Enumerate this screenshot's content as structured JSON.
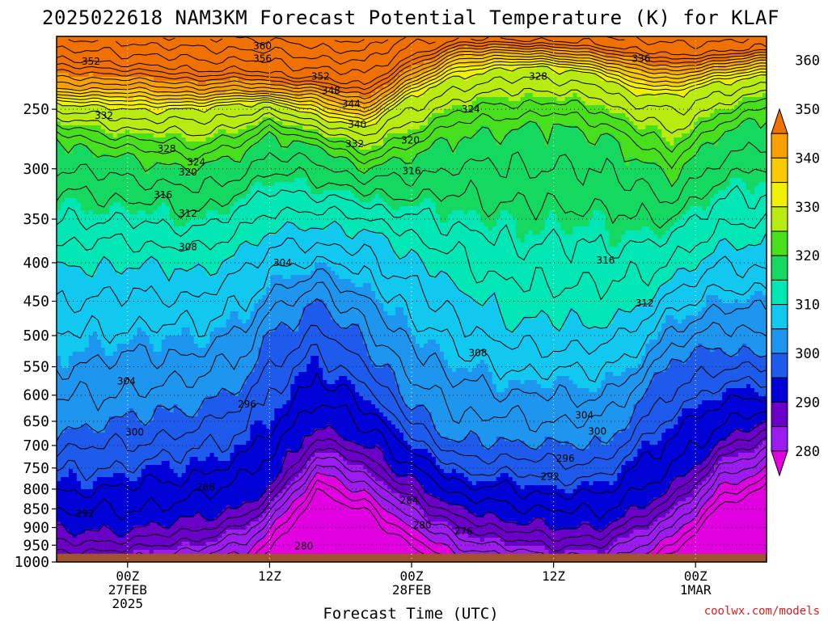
{
  "chart_data": {
    "type": "heatmap",
    "title": "2025022618 NAM3KM Forecast Potential Temperature (K) for KLAF",
    "xlabel": "Forecast Time (UTC)",
    "ylabel": "",
    "credit": "coolwx.com/models",
    "y_axis": {
      "units": "hPa",
      "scale": "log",
      "range": [
        200,
        1000
      ],
      "ticks": [
        250,
        300,
        350,
        400,
        450,
        500,
        550,
        600,
        650,
        700,
        750,
        800,
        850,
        900,
        950,
        1000
      ],
      "tick_labels": [
        "250",
        "300",
        "350",
        "400",
        "450",
        "500",
        "550",
        "600",
        "650",
        "700",
        "750",
        "800",
        "850",
        "900",
        "950",
        "1000"
      ]
    },
    "x_axis": {
      "units": "forecast hours from 2025-02-26 18Z",
      "range": [
        0,
        60
      ],
      "ticks": [
        {
          "hour": 6,
          "lines": [
            "00Z",
            "27FEB",
            "2025"
          ]
        },
        {
          "hour": 18,
          "lines": [
            "12Z"
          ]
        },
        {
          "hour": 30,
          "lines": [
            "00Z",
            "28FEB"
          ]
        },
        {
          "hour": 42,
          "lines": [
            "12Z"
          ]
        },
        {
          "hour": 54,
          "lines": [
            "00Z",
            "1MAR"
          ]
        }
      ]
    },
    "grid": true,
    "colorbar": {
      "levels": [
        280,
        290,
        300,
        310,
        320,
        330,
        340,
        350,
        360
      ],
      "labels": [
        "280",
        "290",
        "300",
        "310",
        "320",
        "330",
        "340",
        "350",
        "360"
      ],
      "colors": [
        "#e000e0",
        "#9c1cf0",
        "#6a00c8",
        "#0000d8",
        "#1e5aec",
        "#1e96f0",
        "#10c8f0",
        "#00e6b4",
        "#14d860",
        "#48e01c",
        "#b8ec10",
        "#f0f000",
        "#f8c800",
        "#f8a000",
        "#f07000"
      ]
    },
    "isentrope_interval": 2,
    "isentropes_theta_K": [
      276,
      278,
      280,
      282,
      284,
      286,
      288,
      290,
      292,
      294,
      296,
      298,
      300,
      302,
      304,
      306,
      308,
      310,
      312,
      314,
      316,
      318,
      320,
      322,
      324,
      326,
      328,
      330,
      332,
      334,
      336,
      338,
      340,
      342,
      344,
      346,
      348,
      350,
      352,
      354,
      356,
      358,
      360
    ],
    "isentrope_pressure_hPa": {
      "hours": [
        0,
        6,
        12,
        16,
        18,
        22,
        26,
        30,
        34,
        38,
        42,
        46,
        48,
        52,
        56,
        60
      ],
      "theta_290": [
        915,
        910,
        880,
        840,
        790,
        660,
        700,
        780,
        850,
        880,
        900,
        900,
        870,
        800,
        690,
        650
      ],
      "theta_300": [
        670,
        650,
        620,
        570,
        500,
        450,
        510,
        620,
        700,
        690,
        700,
        700,
        650,
        540,
        520,
        530
      ],
      "theta_310": [
        410,
        400,
        410,
        380,
        360,
        360,
        360,
        390,
        430,
        480,
        480,
        480,
        470,
        420,
        380,
        380
      ],
      "theta_320": [
        275,
        290,
        300,
        285,
        270,
        280,
        300,
        290,
        270,
        265,
        262,
        270,
        280,
        310,
        270,
        255
      ],
      "theta_330": [
        245,
        250,
        250,
        245,
        245,
        255,
        265,
        240,
        225,
        220,
        220,
        225,
        235,
        240,
        230,
        225
      ],
      "theta_340": [
        235,
        235,
        238,
        236,
        237,
        240,
        250,
        228,
        212,
        210,
        212,
        215,
        220,
        225,
        220,
        215
      ],
      "theta_350": [
        215,
        218,
        222,
        222,
        224,
        228,
        232,
        212,
        202,
        202,
        203,
        205,
        208,
        212,
        210,
        207
      ]
    },
    "contour_labels": [
      {
        "theta": 360,
        "hour": 17.4,
        "p": 206
      },
      {
        "theta": 356,
        "hour": 17.4,
        "p": 214
      },
      {
        "theta": 352,
        "hour": 2.9,
        "p": 216
      },
      {
        "theta": 352,
        "hour": 22.3,
        "p": 226
      },
      {
        "theta": 348,
        "hour": 23.2,
        "p": 236
      },
      {
        "theta": 344,
        "hour": 24.9,
        "p": 246
      },
      {
        "theta": 340,
        "hour": 25.4,
        "p": 262
      },
      {
        "theta": 336,
        "hour": 49.4,
        "p": 214
      },
      {
        "theta": 332,
        "hour": 4.0,
        "p": 255
      },
      {
        "theta": 332,
        "hour": 25.2,
        "p": 278
      },
      {
        "theta": 328,
        "hour": 9.3,
        "p": 282
      },
      {
        "theta": 328,
        "hour": 40.7,
        "p": 226
      },
      {
        "theta": 324,
        "hour": 11.8,
        "p": 294
      },
      {
        "theta": 324,
        "hour": 35.0,
        "p": 250
      },
      {
        "theta": 320,
        "hour": 11.1,
        "p": 303
      },
      {
        "theta": 320,
        "hour": 29.9,
        "p": 275
      },
      {
        "theta": 316,
        "hour": 9.0,
        "p": 325
      },
      {
        "theta": 316,
        "hour": 30.0,
        "p": 302
      },
      {
        "theta": 316,
        "hour": 46.4,
        "p": 397
      },
      {
        "theta": 312,
        "hour": 11.1,
        "p": 344
      },
      {
        "theta": 312,
        "hour": 49.7,
        "p": 453
      },
      {
        "theta": 308,
        "hour": 11.1,
        "p": 381
      },
      {
        "theta": 308,
        "hour": 35.6,
        "p": 527
      },
      {
        "theta": 304,
        "hour": 19.1,
        "p": 400
      },
      {
        "theta": 304,
        "hour": 5.9,
        "p": 575
      },
      {
        "theta": 304,
        "hour": 44.6,
        "p": 638
      },
      {
        "theta": 300,
        "hour": 6.6,
        "p": 672
      },
      {
        "theta": 300,
        "hour": 45.7,
        "p": 670
      },
      {
        "theta": 296,
        "hour": 16.1,
        "p": 617
      },
      {
        "theta": 296,
        "hour": 43.0,
        "p": 728
      },
      {
        "theta": 292,
        "hour": 2.4,
        "p": 863
      },
      {
        "theta": 292,
        "hour": 41.7,
        "p": 770
      },
      {
        "theta": 288,
        "hour": 12.6,
        "p": 795
      },
      {
        "theta": 284,
        "hour": 29.8,
        "p": 828
      },
      {
        "theta": 280,
        "hour": 30.9,
        "p": 893
      },
      {
        "theta": 280,
        "hour": 20.9,
        "p": 953
      },
      {
        "theta": 276,
        "hour": 34.4,
        "p": 910
      }
    ]
  }
}
